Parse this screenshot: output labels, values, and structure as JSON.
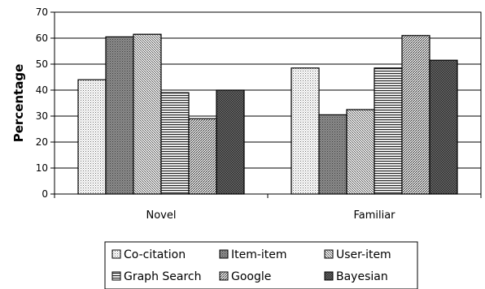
{
  "chart_data": {
    "type": "bar",
    "title": "",
    "xlabel": "",
    "ylabel": "Percentage",
    "ylim": [
      0,
      70
    ],
    "yticks": [
      0,
      10,
      20,
      30,
      40,
      50,
      60,
      70
    ],
    "categories": [
      "Novel",
      "Familiar"
    ],
    "series": [
      {
        "name": "Co-citation",
        "values": [
          44,
          48.5
        ],
        "pattern": "dots-light"
      },
      {
        "name": "Item-item",
        "values": [
          60.5,
          30.5
        ],
        "pattern": "dots-dark"
      },
      {
        "name": "User-item",
        "values": [
          61.5,
          32.5
        ],
        "pattern": "diag-back"
      },
      {
        "name": "Graph Search",
        "values": [
          39,
          48.5
        ],
        "pattern": "horizontal"
      },
      {
        "name": "Google",
        "values": [
          29,
          61
        ],
        "pattern": "diag-fwd"
      },
      {
        "name": "Bayesian",
        "values": [
          40,
          51.5
        ],
        "pattern": "checker"
      }
    ],
    "grid": true,
    "legend": "bottom"
  }
}
